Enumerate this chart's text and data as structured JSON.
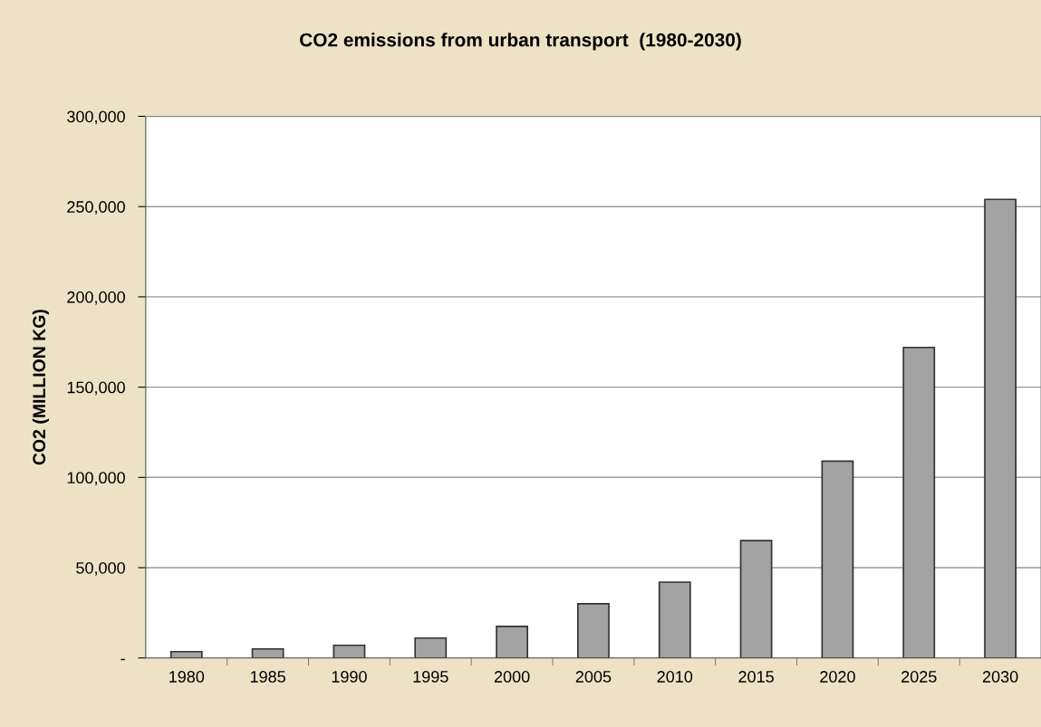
{
  "chart_data": {
    "type": "bar",
    "title": "CO2 emissions from urban transport  (1980-2030)",
    "ylabel": "CO2 (MILLION KG)",
    "categories": [
      "1980",
      "1985",
      "1990",
      "1995",
      "2000",
      "2005",
      "2010",
      "2015",
      "2020",
      "2025",
      "2030"
    ],
    "values": [
      3500,
      5000,
      7000,
      11000,
      17500,
      30000,
      42000,
      65000,
      109000,
      172000,
      254000
    ],
    "color": "#a3a3a3",
    "ylim": [
      0,
      300000
    ],
    "yticks": [
      {
        "value": 0,
        "label": "-"
      },
      {
        "value": 50000,
        "label": "50,000"
      },
      {
        "value": 100000,
        "label": "100,000"
      },
      {
        "value": 150000,
        "label": "150,000"
      },
      {
        "value": 200000,
        "label": "200,000"
      },
      {
        "value": 250000,
        "label": "250,000"
      },
      {
        "value": 300000,
        "label": "300,000"
      }
    ],
    "grid": "y"
  }
}
